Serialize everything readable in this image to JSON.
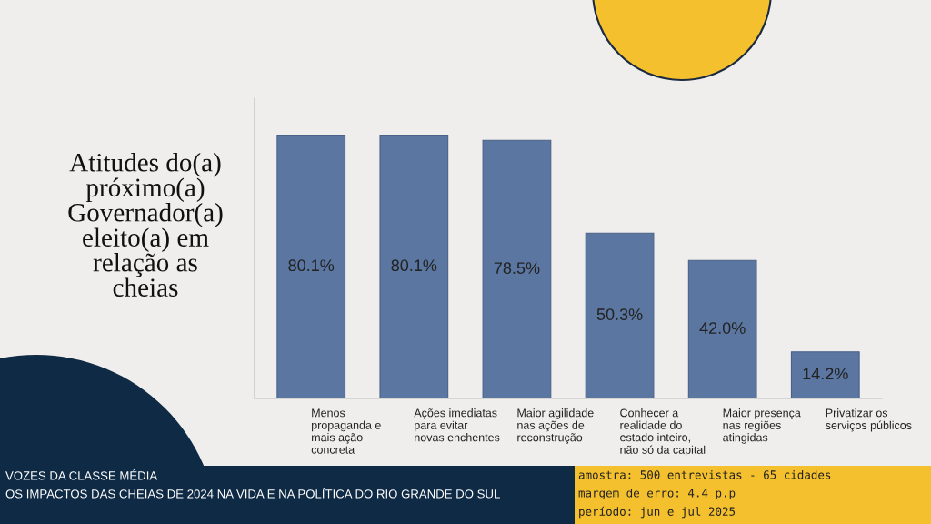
{
  "chart_data": {
    "type": "bar",
    "title": "Atitudes do(a)\npróximo(a)\nGovernador(a)\neleito(a) em\nrelação as\ncheias",
    "categories": [
      "Menos\npropaganda e\nmais ação\nconcreta",
      "Ações imediatas\npara evitar\nnovas enchentes",
      "Maior agilidade\nnas ações de\nreconstrução",
      "Conhecer a\nrealidade do\nestado inteiro,\nnão só da capital",
      "Maior presença\nnas regiões\natingidas",
      "Privatizar os\nserviços públicos"
    ],
    "values": [
      80.1,
      80.1,
      78.5,
      50.3,
      42.0,
      14.2
    ],
    "value_labels": [
      "80.1%",
      "80.1%",
      "78.5%",
      "50.3%",
      "42.0%",
      "14.2%"
    ],
    "color": "#5b76a0",
    "grid": false,
    "legend": false,
    "annotations": [
      "VOZES DA CLASSE MÉDIA",
      "OS IMPACTOS DAS CHEIAS DE 2024 NA VIDA E NA POLÍTICA DO RIO GRANDE DO SUL",
      "amostra: 500 entrevistas - 65 cidades",
      "margem de erro: 4.4 p.p",
      "período: jun e jul 2025"
    ]
  }
}
